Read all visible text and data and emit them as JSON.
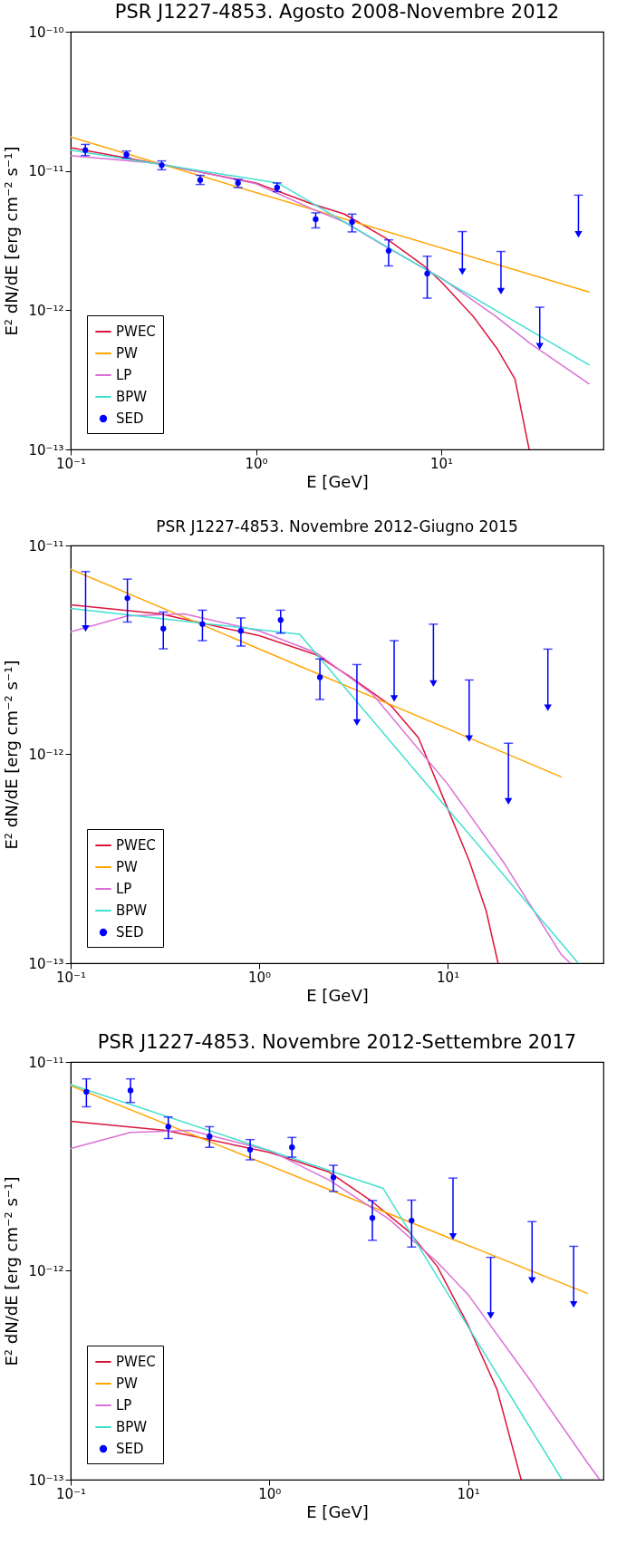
{
  "chart_data": [
    {
      "type": "line",
      "title": "PSR J1227-4853. Agosto 2008-Novembre 2012",
      "xlabel": "E [GeV]",
      "ylabel": "E² dN/dE [erg cm⁻² s⁻¹]",
      "log": "xy",
      "legend": "bottom left",
      "xlim": [
        0.1,
        75
      ],
      "ylim": [
        1e-13,
        1e-10
      ],
      "xticks": [
        {
          "value": 0.1,
          "label": "10⁻¹"
        },
        {
          "value": 1,
          "label": "10⁰"
        },
        {
          "value": 10,
          "label": "10¹"
        }
      ],
      "yticks": [
        {
          "value": 1e-13,
          "label": "10⁻¹³"
        },
        {
          "value": 1e-12,
          "label": "10⁻¹²"
        },
        {
          "value": 1e-11,
          "label": "10⁻¹¹"
        },
        {
          "value": 1e-10,
          "label": "10⁻¹⁰"
        }
      ],
      "series": [
        {
          "name": "PWEC",
          "color": "#dc143c",
          "x": [
            0.1,
            0.3,
            1,
            2,
            3,
            5,
            8,
            10,
            15,
            20,
            25,
            29.8
          ],
          "values": [
            1.47e-11,
            1.12e-11,
            8.2e-12,
            5.8e-12,
            4.9e-12,
            3.3e-12,
            2.1e-12,
            1.6e-12,
            8.9e-13,
            5.3e-13,
            3.2e-13,
            1e-13
          ]
        },
        {
          "name": "PW",
          "color": "#ffa500",
          "x": [
            0.1,
            62.7
          ],
          "values": [
            1.75e-11,
            1.35e-12
          ]
        },
        {
          "name": "LP",
          "color": "#da70d6",
          "x": [
            0.1,
            0.3,
            1,
            2,
            3,
            5,
            10,
            20,
            30,
            62.7
          ],
          "values": [
            1.29e-11,
            1.13e-11,
            8.1e-12,
            5.35e-12,
            4.3e-12,
            2.86e-12,
            1.7e-12,
            8.9e-13,
            5.8e-13,
            2.96e-13
          ]
        },
        {
          "name": "BPW",
          "color": "#40e0d0",
          "x": [
            0.1,
            1.31,
            62.7
          ],
          "values": [
            1.41e-11,
            8.2e-12,
            4.05e-13
          ]
        },
        {
          "name": "SED",
          "type": "scatter",
          "marker": "circle",
          "color": "#0000ff",
          "x": [
            0.12,
            0.2,
            0.31,
            0.5,
            0.8,
            1.3,
            2.1,
            3.3,
            5.2,
            8.4
          ],
          "values": [
            1.41e-11,
            1.31e-11,
            1.1e-11,
            8.6e-12,
            8.2e-12,
            7.6e-12,
            4.5e-12,
            4.3e-12,
            2.67e-12,
            1.83e-12
          ],
          "errors": [
            [
              1.29e-11,
              1.55e-11
            ],
            [
              1.24e-11,
              1.39e-11
            ],
            [
              1.02e-11,
              1.18e-11
            ],
            [
              8e-12,
              9.3e-12
            ],
            [
              7.6e-12,
              8.7e-12
            ],
            [
              7.1e-12,
              8.2e-12
            ],
            [
              3.9e-12,
              5e-12
            ],
            [
              3.65e-12,
              4.9e-12
            ],
            [
              2.08e-12,
              3.2e-12
            ],
            [
              1.22e-12,
              2.44e-12
            ]
          ]
        },
        {
          "type": "scatter",
          "marker": "triangle",
          "color": "#0000ff",
          "x": [
            13,
            21,
            34,
            55
          ],
          "values": [
            1.89e-12,
            1.37e-12,
            5.5e-13,
            3.5e-12
          ],
          "errors": [
            [
              1.89e-12,
              3.67e-12
            ],
            [
              1.37e-12,
              2.64e-12
            ],
            [
              5.5e-13,
              1.05e-12
            ],
            [
              3.5e-12,
              6.7e-12
            ]
          ]
        }
      ]
    },
    {
      "type": "line",
      "title": "PSR J1227-4853. Novembre 2012-Giugno 2015",
      "xlabel": "E [GeV]",
      "ylabel": "E² dN/dE [erg cm⁻² s⁻¹]",
      "log": "xy",
      "legend": "bottom left",
      "xlim": [
        0.1,
        67
      ],
      "ylim": [
        1e-13,
        1e-11
      ],
      "xticks": [
        {
          "value": 0.1,
          "label": "10⁻¹"
        },
        {
          "value": 1,
          "label": "10⁰"
        },
        {
          "value": 10,
          "label": "10¹"
        }
      ],
      "yticks": [
        {
          "value": 1e-13,
          "label": "10⁻¹³"
        },
        {
          "value": 1e-12,
          "label": "10⁻¹²"
        },
        {
          "value": 1e-11,
          "label": "10⁻¹¹"
        }
      ],
      "series": [
        {
          "name": "PWEC",
          "color": "#dc143c",
          "x": [
            0.1,
            0.3,
            1,
            2,
            3,
            5,
            7,
            10,
            13,
            16,
            18.5
          ],
          "values": [
            5.2e-12,
            4.7e-12,
            3.7e-12,
            3e-12,
            2.37e-12,
            1.71e-12,
            1.2e-12,
            5.5e-13,
            3.1e-13,
            1.78e-13,
            1e-13
          ]
        },
        {
          "name": "PW",
          "color": "#ffa500",
          "x": [
            0.1,
            40
          ],
          "values": [
            7.7e-12,
            7.8e-13
          ]
        },
        {
          "name": "LP",
          "color": "#da70d6",
          "x": [
            0.1,
            0.2,
            0.4,
            1,
            2,
            4,
            10,
            20,
            40,
            44.8
          ],
          "values": [
            3.86e-12,
            4.6e-12,
            4.7e-12,
            3.9e-12,
            3.07e-12,
            1.94e-12,
            7.2e-13,
            3e-13,
            1.1e-13,
            1e-13
          ]
        },
        {
          "name": "BPW",
          "color": "#40e0d0",
          "x": [
            0.1,
            1.64,
            49.3
          ],
          "values": [
            5e-12,
            3.76e-12,
            1e-13
          ]
        },
        {
          "name": "SED",
          "type": "scatter",
          "marker": "circle",
          "color": "#0000ff",
          "x": [
            0.2,
            0.31,
            0.5,
            0.8,
            1.3,
            2.1
          ],
          "values": [
            5.6e-12,
            4e-12,
            4.2e-12,
            3.9e-12,
            4.4e-12,
            2.34e-12
          ],
          "errors": [
            [
              4.3e-12,
              6.9e-12
            ],
            [
              3.2e-12,
              4.8e-12
            ],
            [
              3.5e-12,
              4.9e-12
            ],
            [
              3.3e-12,
              4.5e-12
            ],
            [
              3.8e-12,
              4.9e-12
            ],
            [
              1.83e-12,
              2.86e-12
            ]
          ]
        },
        {
          "type": "scatter",
          "marker": "triangle",
          "color": "#0000ff",
          "x": [
            0.12,
            3.3,
            5.2,
            8.4,
            13,
            21,
            34
          ],
          "values": [
            4e-12,
            1.42e-12,
            1.85e-12,
            2.18e-12,
            1.19e-12,
            5.96e-13,
            1.67e-12
          ],
          "errors": [
            [
              4e-12,
              7.5e-12
            ],
            [
              1.42e-12,
              2.69e-12
            ],
            [
              1.85e-12,
              3.5e-12
            ],
            [
              2.18e-12,
              4.2e-12
            ],
            [
              1.19e-12,
              2.27e-12
            ],
            [
              5.96e-13,
              1.13e-12
            ],
            [
              1.67e-12,
              3.19e-12
            ]
          ]
        }
      ]
    },
    {
      "type": "line",
      "title": "PSR J1227-4853. Novembre 2012-Settembre 2017",
      "xlabel": "E [GeV]",
      "ylabel": "E² dN/dE [erg cm⁻² s⁻¹]",
      "log": "xy",
      "legend": "bottom left",
      "xlim": [
        0.1,
        48
      ],
      "ylim": [
        1e-13,
        1e-11
      ],
      "xticks": [
        {
          "value": 0.1,
          "label": "10⁻¹"
        },
        {
          "value": 1,
          "label": "10⁰"
        },
        {
          "value": 10,
          "label": "10¹"
        }
      ],
      "yticks": [
        {
          "value": 1e-13,
          "label": "10⁻¹³"
        },
        {
          "value": 1e-12,
          "label": "10⁻¹²"
        },
        {
          "value": 1e-11,
          "label": "10⁻¹¹"
        }
      ],
      "series": [
        {
          "name": "PWEC",
          "color": "#dc143c",
          "x": [
            0.1,
            0.3,
            1,
            2,
            3.2,
            5,
            7,
            10,
            14,
            18.5
          ],
          "values": [
            5.2e-12,
            4.7e-12,
            3.69e-12,
            2.97e-12,
            2.19e-12,
            1.55e-12,
            1.05e-12,
            5.5e-13,
            2.7e-13,
            1e-13
          ]
        },
        {
          "name": "PW",
          "color": "#ffa500",
          "x": [
            0.1,
            39.8
          ],
          "values": [
            7.7e-12,
            7.8e-13
          ]
        },
        {
          "name": "LP",
          "color": "#da70d6",
          "x": [
            0.1,
            0.2,
            0.4,
            1,
            2,
            4,
            7,
            10,
            20,
            40,
            46
          ],
          "values": [
            3.85e-12,
            4.6e-12,
            4.7e-12,
            3.77e-12,
            2.72e-12,
            1.77e-12,
            1.1e-12,
            7.7e-13,
            3.1e-13,
            1.2e-13,
            1e-13
          ]
        },
        {
          "name": "BPW",
          "color": "#40e0d0",
          "x": [
            0.1,
            3.74,
            29.7
          ],
          "values": [
            7.8e-12,
            2.48e-12,
            1e-13
          ]
        },
        {
          "name": "SED",
          "type": "scatter",
          "marker": "circle",
          "color": "#0000ff",
          "x": [
            0.12,
            0.2,
            0.31,
            0.5,
            0.8,
            1.3,
            2.1,
            3.3,
            5.2
          ],
          "values": [
            7.2e-12,
            7.3e-12,
            4.9e-12,
            4.4e-12,
            3.8e-12,
            3.9e-12,
            2.8e-12,
            1.79e-12,
            1.74e-12
          ],
          "errors": [
            [
              6.1e-12,
              8.3e-12
            ],
            [
              6.4e-12,
              8.3e-12
            ],
            [
              4.3e-12,
              5.45e-12
            ],
            [
              3.9e-12,
              4.9e-12
            ],
            [
              3.4e-12,
              4.25e-12
            ],
            [
              3.5e-12,
              4.35e-12
            ],
            [
              2.4e-12,
              3.2e-12
            ],
            [
              1.4e-12,
              2.17e-12
            ],
            [
              1.3e-12,
              2.18e-12
            ]
          ]
        },
        {
          "type": "scatter",
          "marker": "triangle",
          "color": "#0000ff",
          "x": [
            8.4,
            13,
            21,
            34
          ],
          "values": [
            1.46e-12,
            6.1e-13,
            9e-13,
            6.9e-13
          ],
          "errors": [
            [
              1.46e-12,
              2.78e-12
            ],
            [
              6.1e-13,
              1.16e-12
            ],
            [
              9e-13,
              1.72e-12
            ],
            [
              6.9e-13,
              1.31e-12
            ]
          ]
        }
      ]
    }
  ]
}
